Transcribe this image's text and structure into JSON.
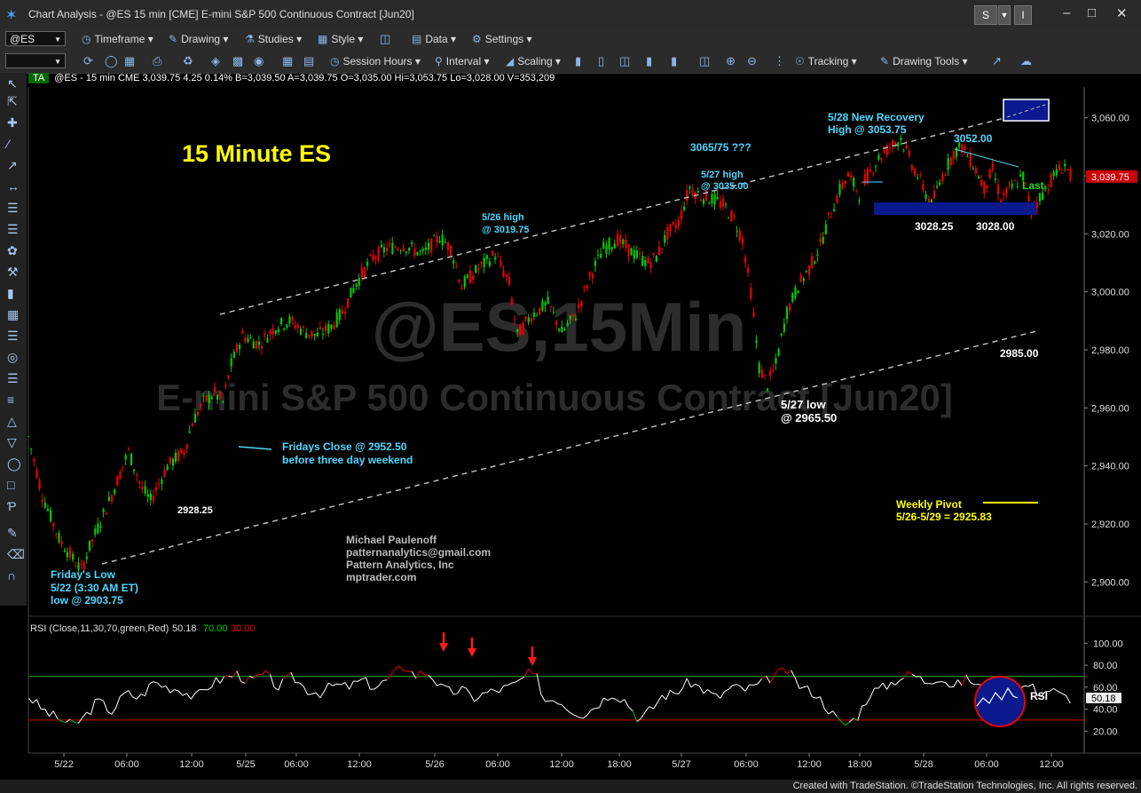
{
  "window": {
    "title": "Chart Analysis - @ES 15 min [CME] E-mini S&P 500 Continuous Contract [Jun20]",
    "btn_s": "S",
    "btn_menu": "I",
    "controls": [
      "–",
      "□",
      "✕"
    ]
  },
  "toolbar1": {
    "symbol": "@ES",
    "items": [
      "Timeframe",
      "Drawing",
      "Studies",
      "Style",
      "Data",
      "Settings"
    ]
  },
  "toolbar2": {
    "items": [
      "Session Hours",
      "Interval",
      "Scaling",
      "Tracking",
      "Drawing Tools"
    ]
  },
  "info_bar": {
    "tag": "TA",
    "text": "@ES - 15 min  CME  3,039.75  4.25  0.14%   B=3,039.50  A=3,039.75  O=3,035.00  Hi=3,053.75  Lo=3,028.00  V=353,209"
  },
  "colors": {
    "up": "#00cc00",
    "down": "#ee0000",
    "cyan": "#4fd8ff",
    "yellow": "#ffff00",
    "white": "#ffffff",
    "navy": "#0a1a8c",
    "rsi_line": "#ffffff"
  },
  "chart_data": [
    {
      "type": "candlestick",
      "title": "15 Minute ES",
      "watermark": "@ES,15Min",
      "watermark_sub": "E-mini S&P 500 Continuous Contract [Jun20]",
      "ylim": [
        2890,
        3070
      ],
      "y_ticks": [
        "3,060.00",
        "3,040.00",
        "3,020.00",
        "3,000.00",
        "2,980.00",
        "2,960.00",
        "2,940.00",
        "2,920.00",
        "2,900.00"
      ],
      "y_tick_values": [
        3060,
        3040,
        3020,
        3000,
        2980,
        2960,
        2940,
        2920,
        2900
      ],
      "last_price": "3,039.75",
      "last_label": "Last",
      "x_ticks": [
        "5/22",
        "06:00",
        "12:00",
        "5/25",
        "06:00",
        "12:00",
        "5/26",
        "06:00",
        "12:00",
        "18:00",
        "5/27",
        "06:00",
        "12:00",
        "18:00",
        "5/28",
        "06:00",
        "12:00"
      ],
      "path_points": [
        [
          0,
          2950
        ],
        [
          10,
          2930
        ],
        [
          22,
          2915
        ],
        [
          32,
          2908
        ],
        [
          38,
          2904
        ],
        [
          44,
          2912
        ],
        [
          60,
          2930
        ],
        [
          72,
          2945
        ],
        [
          82,
          2932
        ],
        [
          88,
          2928
        ],
        [
          100,
          2940
        ],
        [
          112,
          2945
        ],
        [
          118,
          2955
        ],
        [
          126,
          2962
        ],
        [
          134,
          2965
        ],
        [
          140,
          2962
        ],
        [
          146,
          2975
        ],
        [
          154,
          2985
        ],
        [
          166,
          2982
        ],
        [
          178,
          2988
        ],
        [
          188,
          2990
        ],
        [
          200,
          2986
        ],
        [
          208,
          2985
        ],
        [
          218,
          2988
        ],
        [
          226,
          2993
        ],
        [
          236,
          3003
        ],
        [
          248,
          3012
        ],
        [
          258,
          3015
        ],
        [
          270,
          3016
        ],
        [
          284,
          3013
        ],
        [
          296,
          3019
        ],
        [
          304,
          3015
        ],
        [
          312,
          3002
        ],
        [
          324,
          3008
        ],
        [
          336,
          3013
        ],
        [
          346,
          3003
        ],
        [
          352,
          2985
        ],
        [
          362,
          2992
        ],
        [
          374,
          2996
        ],
        [
          384,
          2986
        ],
        [
          394,
          2992
        ],
        [
          404,
          3005
        ],
        [
          414,
          3015
        ],
        [
          424,
          3018
        ],
        [
          436,
          3013
        ],
        [
          446,
          3010
        ],
        [
          452,
          3012
        ],
        [
          460,
          3020
        ],
        [
          468,
          3024
        ],
        [
          476,
          3036
        ],
        [
          484,
          3033
        ],
        [
          492,
          3032
        ],
        [
          500,
          3030
        ],
        [
          508,
          3025
        ],
        [
          514,
          3018
        ],
        [
          520,
          3000
        ],
        [
          526,
          2974
        ],
        [
          532,
          2968
        ],
        [
          538,
          2975
        ],
        [
          546,
          2993
        ],
        [
          554,
          3002
        ],
        [
          562,
          3008
        ],
        [
          570,
          3016
        ],
        [
          576,
          3025
        ],
        [
          584,
          3035
        ],
        [
          590,
          3040
        ],
        [
          598,
          3034
        ],
        [
          604,
          3040
        ],
        [
          612,
          3046
        ],
        [
          620,
          3050
        ],
        [
          628,
          3053
        ],
        [
          636,
          3044
        ],
        [
          642,
          3038
        ],
        [
          650,
          3030
        ],
        [
          658,
          3040
        ],
        [
          666,
          3048
        ],
        [
          672,
          3050
        ],
        [
          680,
          3044
        ],
        [
          688,
          3036
        ],
        [
          694,
          3042
        ],
        [
          700,
          3032
        ],
        [
          708,
          3036
        ],
        [
          716,
          3040
        ],
        [
          722,
          3028
        ],
        [
          730,
          3034
        ],
        [
          738,
          3040
        ],
        [
          746,
          3044
        ],
        [
          750,
          3040
        ]
      ],
      "annotations": [
        {
          "text": "Friday's Low",
          "color": "cyan"
        },
        {
          "text": "5/22 (3:30 AM ET)",
          "color": "cyan"
        },
        {
          "text": "low @ 2903.75",
          "color": "cyan"
        },
        {
          "text": "2928.25",
          "color": "white"
        },
        {
          "text": "Fridays Close @ 2952.50",
          "color": "cyan"
        },
        {
          "text": "before three day weekend",
          "color": "cyan"
        },
        {
          "text": "5/26 high",
          "color": "cyan"
        },
        {
          "text": "@ 3019.75",
          "color": "cyan"
        },
        {
          "text": "3065/75 ???",
          "color": "cyan"
        },
        {
          "text": "5/27 high",
          "color": "cyan"
        },
        {
          "text": "@ 3035.00",
          "color": "cyan"
        },
        {
          "text": "5/28 New Recovery",
          "color": "cyan"
        },
        {
          "text": "High @ 3053.75",
          "color": "cyan"
        },
        {
          "text": "3052.00",
          "color": "cyan"
        },
        {
          "text": "3028.25",
          "color": "white"
        },
        {
          "text": "3028.00",
          "color": "white"
        },
        {
          "text": "2985.00",
          "color": "white"
        },
        {
          "text": "5/27 low",
          "color": "white"
        },
        {
          "text": "@ 2965.50",
          "color": "white"
        },
        {
          "text": "Weekly Pivot",
          "color": "yellow"
        },
        {
          "text": "5/26-5/29 = 2925.83",
          "color": "yellow"
        }
      ],
      "credits": [
        "Michael Paulenoff",
        "patternanalytics@gmail.com",
        "Pattern Analytics, Inc",
        "mptrader.com"
      ],
      "weekly_pivot": 2925.83
    },
    {
      "type": "line",
      "title": "RSI (Close,11,30,70,green,Red)",
      "last_value": "50.18",
      "overbought": "70.00",
      "oversold": "30.00",
      "ylim": [
        0,
        110
      ],
      "y_ticks": [
        "100.00",
        "80.00",
        "60.00",
        "40.00",
        "20.00"
      ],
      "y_tick_values": [
        100,
        80,
        60,
        40,
        20
      ],
      "label": "RSI",
      "path_points": [
        [
          0,
          52
        ],
        [
          8,
          42
        ],
        [
          16,
          35
        ],
        [
          24,
          30
        ],
        [
          32,
          25
        ],
        [
          40,
          32
        ],
        [
          50,
          48
        ],
        [
          60,
          38
        ],
        [
          70,
          55
        ],
        [
          80,
          50
        ],
        [
          90,
          65
        ],
        [
          100,
          60
        ],
        [
          110,
          58
        ],
        [
          120,
          50
        ],
        [
          130,
          62
        ],
        [
          140,
          68
        ],
        [
          150,
          72
        ],
        [
          160,
          65
        ],
        [
          170,
          72
        ],
        [
          180,
          60
        ],
        [
          190,
          70
        ],
        [
          200,
          58
        ],
        [
          210,
          55
        ],
        [
          220,
          62
        ],
        [
          230,
          60
        ],
        [
          240,
          66
        ],
        [
          250,
          60
        ],
        [
          260,
          68
        ],
        [
          266,
          75
        ],
        [
          272,
          80
        ],
        [
          278,
          70
        ],
        [
          284,
          74
        ],
        [
          290,
          72
        ],
        [
          296,
          60
        ],
        [
          304,
          55
        ],
        [
          312,
          58
        ],
        [
          320,
          50
        ],
        [
          330,
          55
        ],
        [
          340,
          58
        ],
        [
          350,
          62
        ],
        [
          360,
          72
        ],
        [
          366,
          68
        ],
        [
          372,
          48
        ],
        [
          380,
          50
        ],
        [
          390,
          40
        ],
        [
          400,
          35
        ],
        [
          410,
          45
        ],
        [
          420,
          55
        ],
        [
          430,
          48
        ],
        [
          440,
          30
        ],
        [
          450,
          42
        ],
        [
          456,
          52
        ],
        [
          466,
          55
        ],
        [
          476,
          65
        ],
        [
          486,
          58
        ],
        [
          496,
          50
        ],
        [
          506,
          60
        ],
        [
          516,
          58
        ],
        [
          526,
          62
        ],
        [
          536,
          70
        ],
        [
          546,
          75
        ],
        [
          556,
          60
        ],
        [
          566,
          55
        ],
        [
          576,
          40
        ],
        [
          586,
          25
        ],
        [
          596,
          32
        ],
        [
          606,
          55
        ],
        [
          616,
          60
        ],
        [
          626,
          68
        ],
        [
          636,
          72
        ],
        [
          646,
          65
        ],
        [
          656,
          70
        ],
        [
          666,
          60
        ],
        [
          676,
          68
        ],
        [
          686,
          60
        ],
        [
          696,
          48
        ],
        [
          704,
          45
        ],
        [
          712,
          58
        ],
        [
          720,
          62
        ],
        [
          728,
          55
        ],
        [
          736,
          58
        ],
        [
          744,
          52
        ],
        [
          750,
          50
        ]
      ]
    }
  ]
}
